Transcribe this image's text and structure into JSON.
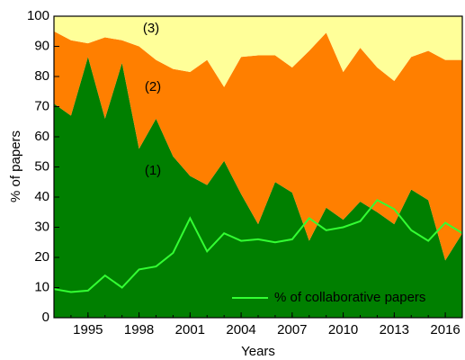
{
  "chart_data": {
    "type": "stacked-area",
    "x": [
      1993,
      1994,
      1995,
      1996,
      1997,
      1998,
      1999,
      2000,
      2001,
      2002,
      2003,
      2004,
      2005,
      2006,
      2007,
      2008,
      2009,
      2010,
      2011,
      2012,
      2013,
      2014,
      2015,
      2016,
      2017
    ],
    "series": [
      {
        "name": "(1)",
        "color": "#007f00",
        "values": [
          71,
          67,
          86.5,
          66,
          84.5,
          56,
          66,
          53.5,
          47,
          44,
          52,
          41,
          31,
          45,
          41.5,
          25.5,
          36.5,
          32.5,
          38.5,
          35,
          31,
          42.5,
          39,
          19,
          28
        ]
      },
      {
        "name": "(2)",
        "color": "#ff7f00",
        "values": [
          24,
          25,
          4.5,
          27,
          7.5,
          34,
          19.5,
          29,
          34.5,
          41.5,
          24.5,
          45.5,
          56,
          42,
          41.5,
          63,
          58,
          49,
          51,
          48,
          47.5,
          44,
          49.5,
          66.5,
          57.5
        ]
      },
      {
        "name": "(3)",
        "color": "#ffff99",
        "values": [
          5,
          8,
          9,
          7,
          8,
          10,
          14.5,
          17.5,
          18.5,
          14.5,
          23.5,
          13.5,
          13,
          13,
          17,
          11.5,
          5.5,
          18.5,
          10.5,
          17,
          21.5,
          13.5,
          11.5,
          14.5,
          14.5
        ]
      }
    ],
    "lines": [
      {
        "name": "% of collaborative papers",
        "color": "#33ff33",
        "values": [
          9.5,
          8.5,
          9,
          14,
          10,
          16,
          17,
          21.5,
          33,
          22,
          28,
          25.5,
          26,
          25,
          26,
          33,
          29,
          30,
          32,
          39,
          36,
          29,
          25.5,
          31.5,
          28
        ]
      }
    ],
    "x_label": "Years",
    "y_label": "% of papers",
    "xlim": [
      1993,
      2017
    ],
    "xticks": [
      1995,
      1998,
      2001,
      2004,
      2007,
      2010,
      2013,
      2016
    ],
    "ylim": [
      0,
      100
    ],
    "yticks": [
      0,
      10,
      20,
      30,
      40,
      50,
      60,
      70,
      80,
      90,
      100
    ],
    "legend": "lower right"
  }
}
